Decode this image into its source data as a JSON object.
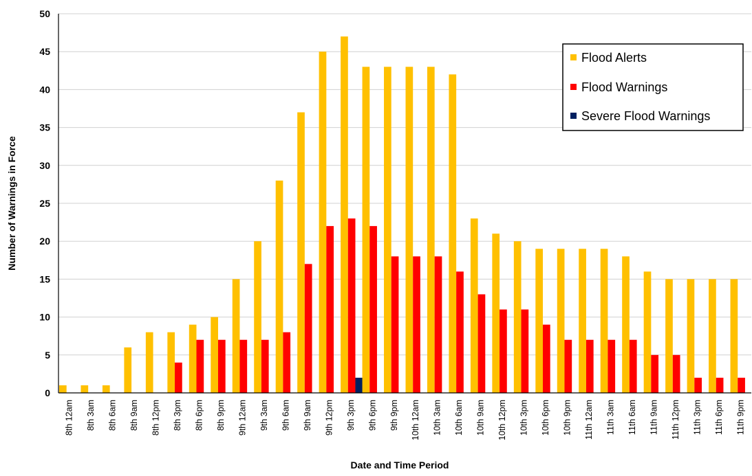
{
  "chart_data": {
    "type": "bar",
    "title": "",
    "xlabel": "Date and Time Period",
    "ylabel": "Number of Warnings in Force",
    "ylim": [
      0,
      50
    ],
    "yticks": [
      0,
      5,
      10,
      15,
      20,
      25,
      30,
      35,
      40,
      45,
      50
    ],
    "grid": "horizontal",
    "legend_position": "top-right",
    "categories": [
      "8th 12am",
      "8th 3am",
      "8th 6am",
      "8th 9am",
      "8th 12pm",
      "8th 3pm",
      "8th 6pm",
      "8th 9pm",
      "9th 12am",
      "9th 3am",
      "9th 6am",
      "9th 9am",
      "9th 12pm",
      "9th 3pm",
      "9th 6pm",
      "9th 9pm",
      "10th 12am",
      "10th 3am",
      "10th 6am",
      "10th 9am",
      "10th 12pm",
      "10th 3pm",
      "10th 6pm",
      "10th 9pm",
      "11th 12am",
      "11th 3am",
      "11th 6am",
      "11th 9am",
      "11th 12pm",
      "11th 3pm",
      "11th 6pm",
      "11th 9pm"
    ],
    "series": [
      {
        "name": "Flood Alerts",
        "color": "#FFC000",
        "values": [
          1,
          1,
          1,
          6,
          8,
          8,
          9,
          10,
          15,
          20,
          28,
          37,
          45,
          47,
          43,
          43,
          43,
          43,
          42,
          23,
          21,
          20,
          19,
          19,
          19,
          19,
          18,
          16,
          15,
          15,
          15,
          15
        ]
      },
      {
        "name": "Flood Warnings",
        "color": "#FF0000",
        "values": [
          0,
          0,
          0,
          0,
          0,
          4,
          7,
          7,
          7,
          7,
          8,
          17,
          22,
          23,
          22,
          18,
          18,
          18,
          16,
          13,
          11,
          11,
          9,
          7,
          7,
          7,
          7,
          5,
          5,
          2,
          2,
          2
        ]
      },
      {
        "name": "Severe Flood Warnings",
        "color": "#002060",
        "values": [
          0,
          0,
          0,
          0,
          0,
          0,
          0,
          0,
          0,
          0,
          0,
          0,
          0,
          2,
          0,
          0,
          0,
          0,
          0,
          0,
          0,
          0,
          0,
          0,
          0,
          0,
          0,
          0,
          0,
          0,
          0,
          0
        ]
      }
    ]
  }
}
